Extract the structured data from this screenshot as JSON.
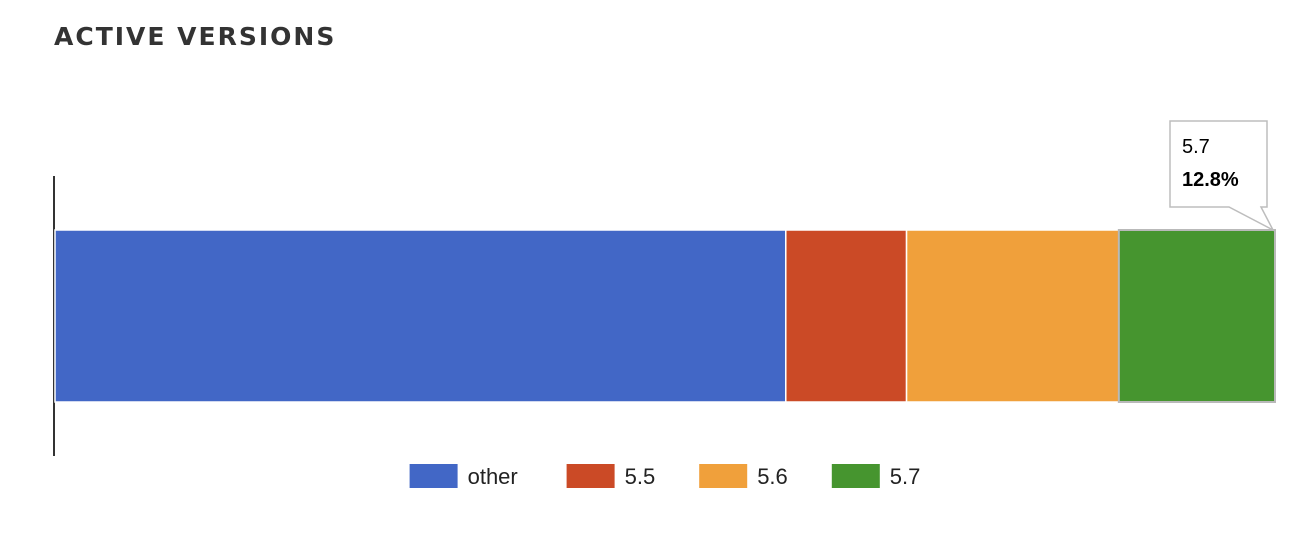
{
  "chart_data": {
    "type": "bar",
    "stacked": true,
    "orientation": "horizontal",
    "normalized": "percent",
    "title": "ACTIVE VERSIONS",
    "xlim": [
      0,
      100
    ],
    "grid": false,
    "legend_position": "bottom",
    "series": [
      {
        "name": "other",
        "value": 59.9,
        "color": "#4267C6"
      },
      {
        "name": "5.5",
        "value": 9.9,
        "color": "#CB4A26"
      },
      {
        "name": "5.6",
        "value": 17.4,
        "color": "#F0A03B"
      },
      {
        "name": "5.7",
        "value": 12.8,
        "color": "#46952F"
      }
    ],
    "tooltip": {
      "series": "5.7",
      "label": "5.7",
      "value_text": "12.8%"
    }
  }
}
